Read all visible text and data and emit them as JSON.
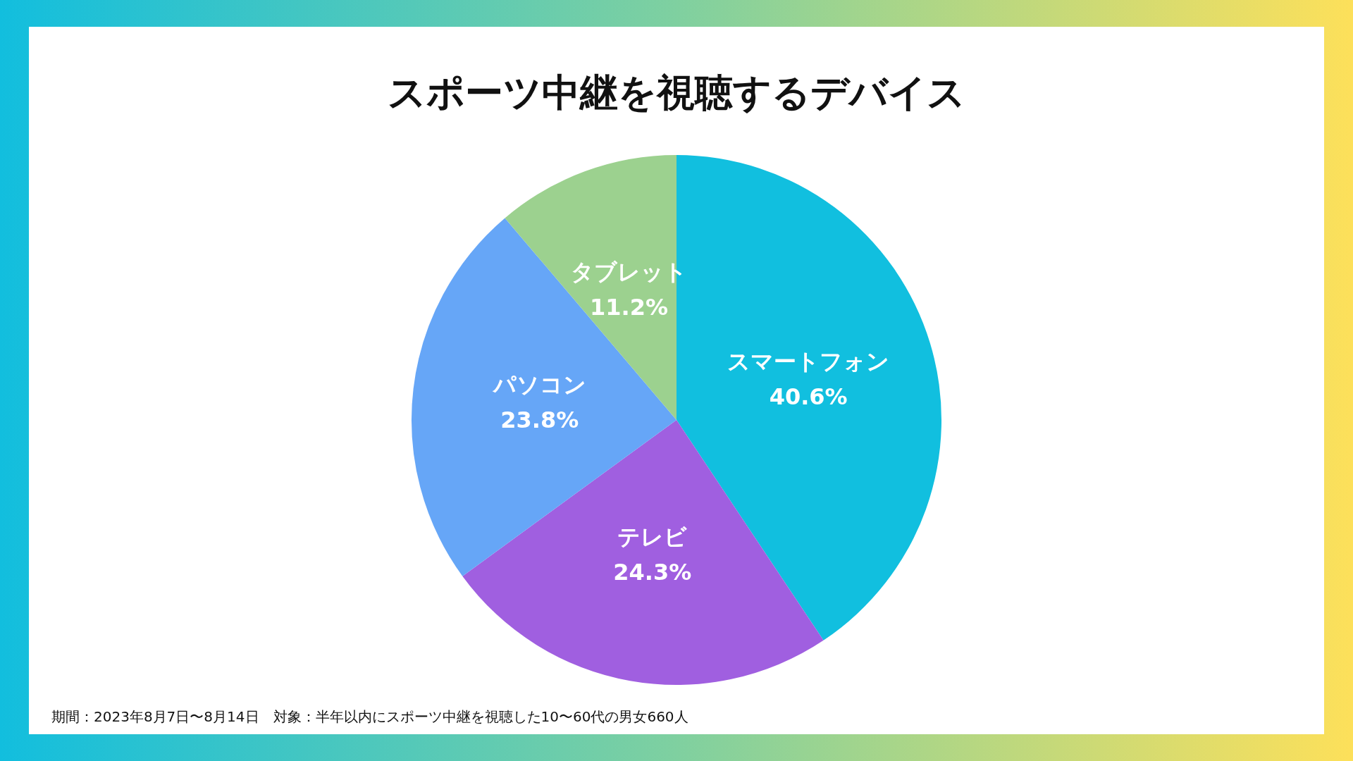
{
  "chart_data": {
    "type": "pie",
    "title": "スポーツ中継を視聴するデバイス",
    "categories": [
      "スマートフォン",
      "テレビ",
      "パソコン",
      "タブレット"
    ],
    "values": [
      40.6,
      24.3,
      23.8,
      11.2
    ],
    "value_labels": [
      "40.6%",
      "24.3%",
      "23.8%",
      "11.2%"
    ],
    "colors": [
      "#11bfdf",
      "#a05fe0",
      "#66a6f7",
      "#9cd18f"
    ],
    "legend": false,
    "annotations": [
      "期間：2023年8月7日〜8月14日　対象：半年以内にスポーツ中継を視聴した10〜60代の男女660人"
    ]
  }
}
